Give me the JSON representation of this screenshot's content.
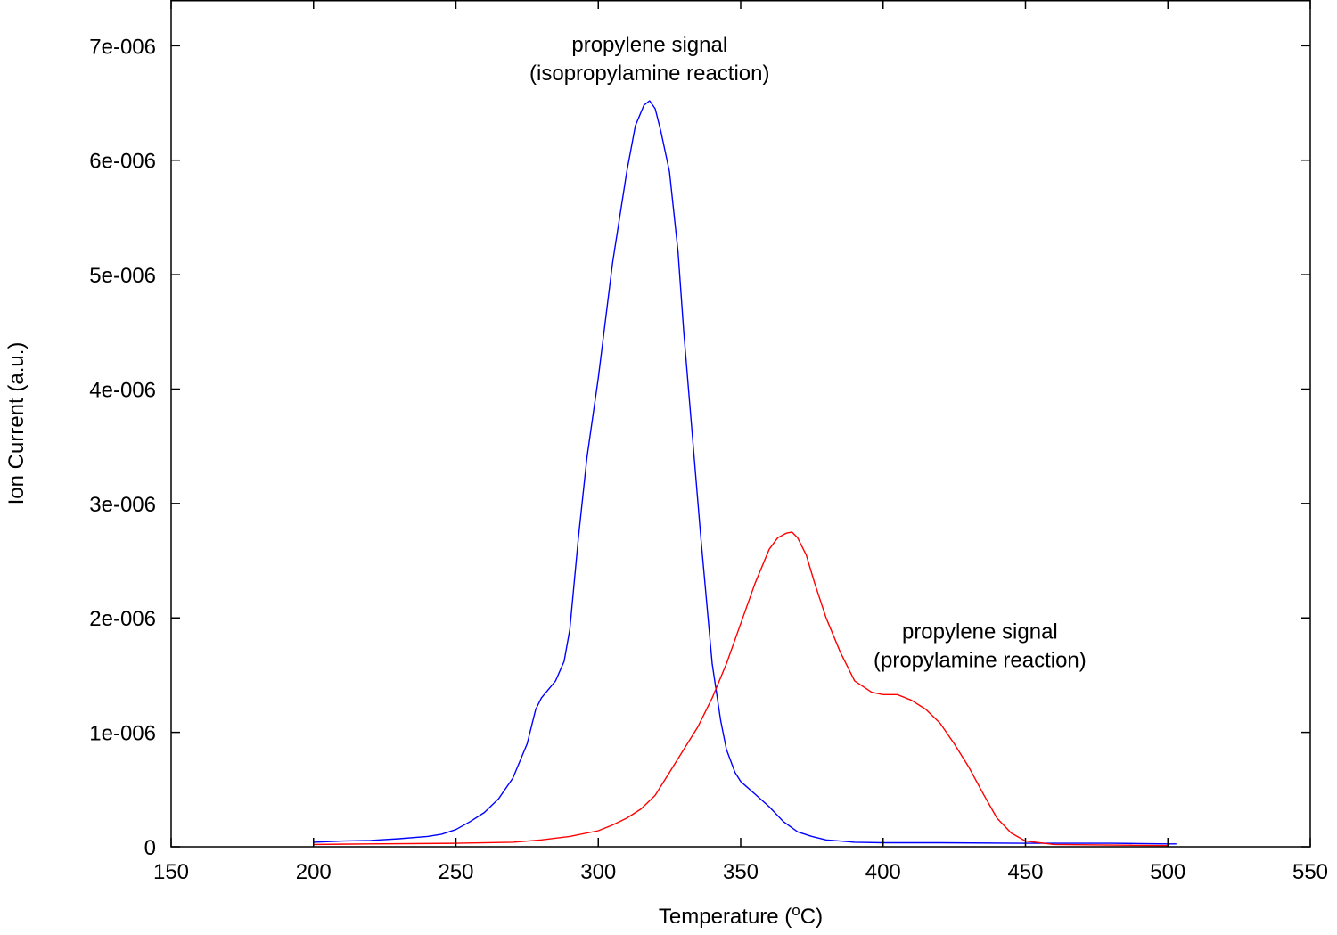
{
  "chart_data": {
    "type": "line",
    "title": "",
    "xlabel": "Temperature (",
    "xlabel_superscript": "o",
    "xlabel_suffix": "C)",
    "ylabel": "Ion Current (a.u.)",
    "xlim": [
      150,
      550
    ],
    "ylim": [
      0,
      7.4e-06
    ],
    "x_ticks": [
      150,
      200,
      250,
      300,
      350,
      400,
      450,
      500,
      550
    ],
    "x_tick_labels": [
      "150",
      "200",
      "250",
      "300",
      "350",
      "400",
      "450",
      "500",
      "550"
    ],
    "y_ticks": [
      0,
      1e-06,
      2e-06,
      3e-06,
      4e-06,
      5e-06,
      6e-06,
      7e-06
    ],
    "y_tick_labels": [
      "0",
      "1e-006",
      "2e-006",
      "3e-006",
      "4e-006",
      "5e-006",
      "6e-006",
      "7e-006"
    ],
    "grid": false,
    "series": [
      {
        "color": "#0000ff",
        "x": [
          200,
          210,
          220,
          230,
          240,
          245,
          250,
          255,
          260,
          265,
          270,
          275,
          278,
          280,
          285,
          288,
          290,
          293,
          296,
          300,
          305,
          310,
          313,
          316,
          318,
          320,
          322,
          325,
          328,
          330,
          333,
          336,
          340,
          343,
          345,
          348,
          350,
          355,
          360,
          365,
          370,
          375,
          380,
          385,
          390,
          400,
          420,
          450,
          480,
          500,
          503
        ],
        "y": [
          4e-08,
          5e-08,
          5.5e-08,
          7e-08,
          9e-08,
          1.1e-07,
          1.5e-07,
          2.2e-07,
          3e-07,
          4.2e-07,
          6e-07,
          9e-07,
          1.2e-06,
          1.3e-06,
          1.45e-06,
          1.62e-06,
          1.9e-06,
          2.7e-06,
          3.4e-06,
          4.1e-06,
          5.1e-06,
          5.9e-06,
          6.3e-06,
          6.48e-06,
          6.52e-06,
          6.45e-06,
          6.25e-06,
          5.9e-06,
          5.2e-06,
          4.5e-06,
          3.6e-06,
          2.7e-06,
          1.6e-06,
          1.1e-06,
          8.5e-07,
          6.5e-07,
          5.7e-07,
          4.6e-07,
          3.5e-07,
          2.2e-07,
          1.3e-07,
          9e-08,
          6e-08,
          5e-08,
          4e-08,
          3.5e-08,
          3.5e-08,
          3e-08,
          3e-08,
          2.5e-08,
          2.5e-08
        ]
      },
      {
        "color": "#ff0000",
        "x": [
          200,
          220,
          250,
          270,
          280,
          290,
          300,
          305,
          310,
          315,
          320,
          325,
          330,
          335,
          340,
          345,
          350,
          355,
          360,
          363,
          366,
          368,
          370,
          373,
          376,
          380,
          385,
          390,
          393,
          396,
          400,
          405,
          410,
          415,
          420,
          425,
          430,
          435,
          440,
          445,
          450,
          460,
          480,
          500
        ],
        "y": [
          2e-08,
          2.5e-08,
          3e-08,
          4e-08,
          6e-08,
          9e-08,
          1.4e-07,
          1.9e-07,
          2.5e-07,
          3.3e-07,
          4.5e-07,
          6.5e-07,
          8.5e-07,
          1.05e-06,
          1.3e-06,
          1.6e-06,
          1.95e-06,
          2.3e-06,
          2.6e-06,
          2.7e-06,
          2.74e-06,
          2.75e-06,
          2.7e-06,
          2.55e-06,
          2.3e-06,
          2e-06,
          1.7e-06,
          1.45e-06,
          1.4e-06,
          1.35e-06,
          1.33e-06,
          1.33e-06,
          1.28e-06,
          1.2e-06,
          1.08e-06,
          9e-07,
          7e-07,
          4.7e-07,
          2.5e-07,
          1.2e-07,
          5e-08,
          2e-08,
          1.5e-08,
          1e-08
        ]
      }
    ],
    "annotations": [
      {
        "id": "isopropylamine",
        "lines": [
          "propylene signal",
          "(isopropylamine reaction)"
        ],
        "x": 318,
        "y": 6.95e-06,
        "anchor": "middle"
      },
      {
        "id": "propylamine",
        "lines": [
          "propylene signal",
          "(propylamine reaction)"
        ],
        "x": 434,
        "y": 1.82e-06,
        "anchor": "middle"
      }
    ]
  }
}
